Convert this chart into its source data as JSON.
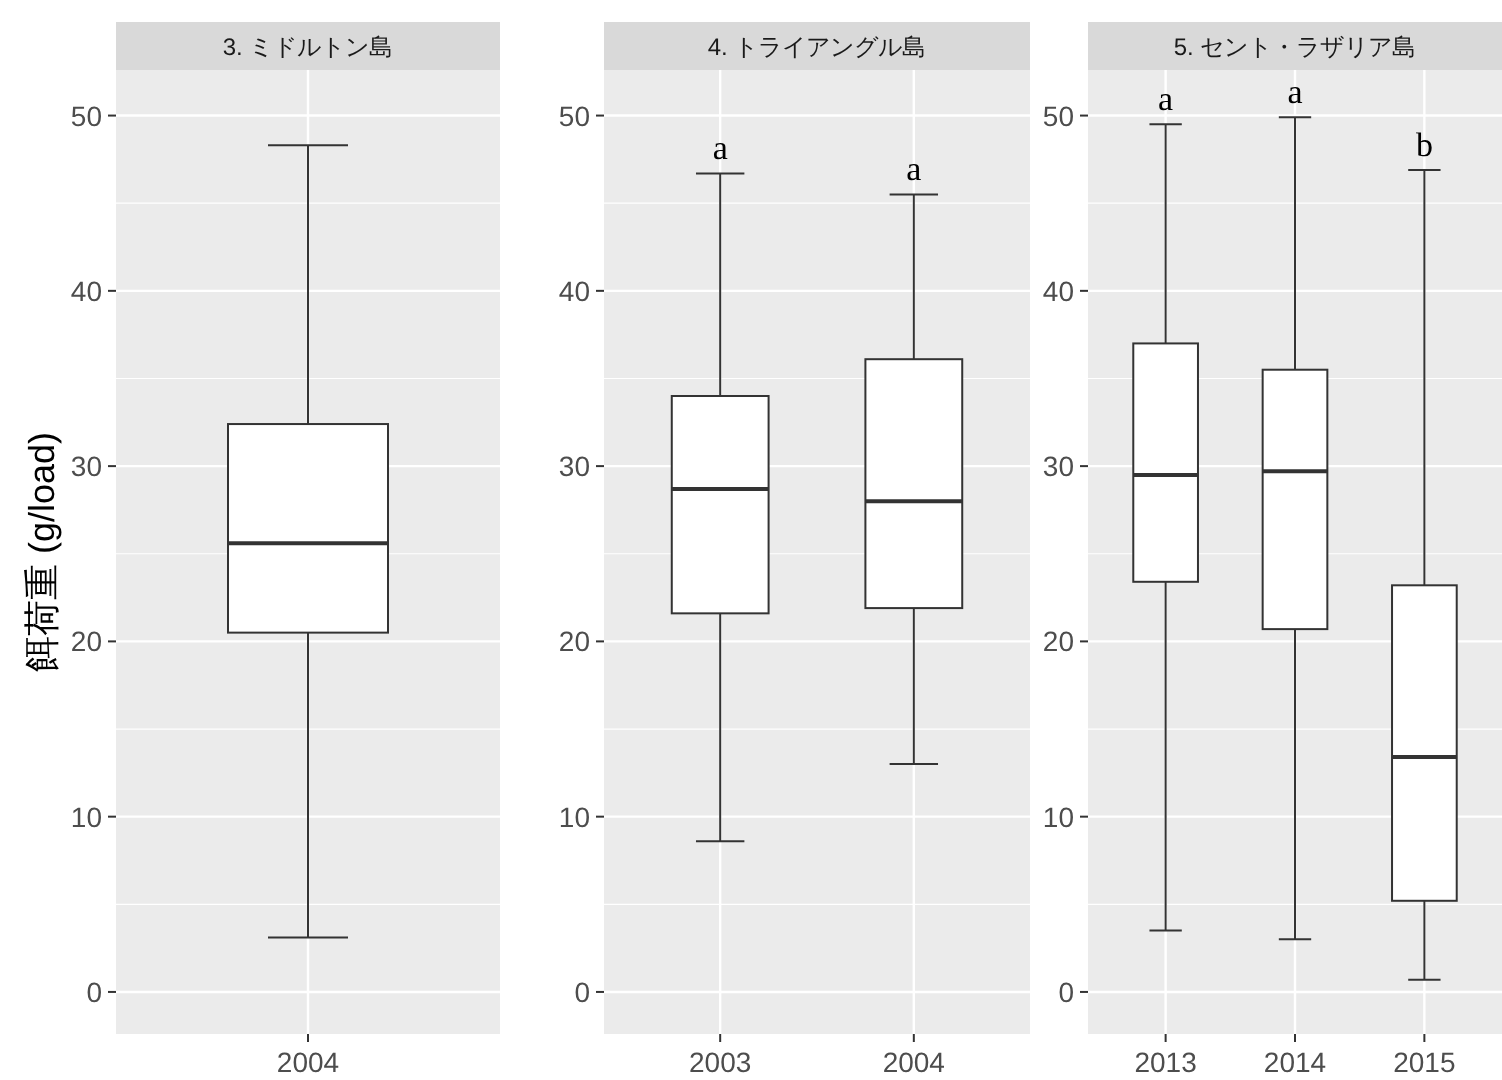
{
  "chart_data": [
    {
      "type": "box",
      "title": "3. ミドルトン島",
      "ylabel": "餌荷重 (g/load)",
      "categories": [
        "2004"
      ],
      "ylim": [
        -2.4,
        52.6
      ],
      "yticks": [
        0,
        10,
        20,
        30,
        40,
        50
      ],
      "grid": true,
      "boxes": [
        {
          "low": 3.1,
          "q1": 20.5,
          "median": 25.6,
          "q3": 32.4,
          "high": 48.3
        }
      ]
    },
    {
      "type": "box",
      "title": "4. トライアングル島",
      "categories": [
        "2003",
        "2004"
      ],
      "ylim": [
        -2.4,
        52.6
      ],
      "yticks": [
        0,
        10,
        20,
        30,
        40,
        50
      ],
      "grid": true,
      "boxes": [
        {
          "low": 8.6,
          "q1": 21.6,
          "median": 28.7,
          "q3": 34.0,
          "high": 46.7
        },
        {
          "low": 13.0,
          "q1": 21.9,
          "median": 28.0,
          "q3": 36.1,
          "high": 45.5
        }
      ],
      "annotations": [
        "a",
        "a"
      ]
    },
    {
      "type": "box",
      "title": "5. セント・ラザリア島",
      "categories": [
        "2013",
        "2014",
        "2015"
      ],
      "ylim": [
        -2.4,
        52.6
      ],
      "yticks": [
        0,
        10,
        20,
        30,
        40,
        50
      ],
      "grid": true,
      "boxes": [
        {
          "low": 3.5,
          "q1": 23.4,
          "median": 29.5,
          "q3": 37.0,
          "high": 49.5
        },
        {
          "low": 3.0,
          "q1": 20.7,
          "median": 29.7,
          "q3": 35.5,
          "high": 49.9
        },
        {
          "low": 0.7,
          "q1": 5.2,
          "median": 13.4,
          "q3": 23.2,
          "high": 46.9
        }
      ],
      "annotations": [
        "a",
        "a",
        "b"
      ]
    }
  ]
}
